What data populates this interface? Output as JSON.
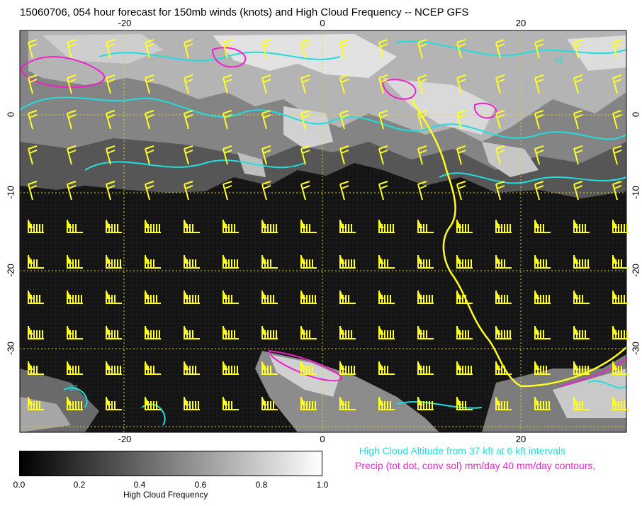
{
  "title": "15060706, 054 hour forecast for 150mb winds (knots) and High Cloud Frequency -- NCEP GFS",
  "axes": {
    "lon_top": [
      "-20",
      "0",
      "20"
    ],
    "lon_bottom": [
      "-20",
      "0",
      "20"
    ],
    "lat_left": [
      "0",
      "-10",
      "-20",
      "-30"
    ],
    "lat_right": [
      "0",
      "-10",
      "-20",
      "-30"
    ]
  },
  "colorbar": {
    "ticks": [
      "0.0",
      "0.2",
      "0.4",
      "0.6",
      "0.8",
      "1.0"
    ],
    "label": "High Cloud Frequency"
  },
  "legend": {
    "cyan": "High Cloud Altitude from 37 kft at 6 kft intervals",
    "magenta": "Precip (tot dot, conv sol) mm/day 40 mm/day contours,"
  },
  "colors": {
    "wind_barbs": "#ffff22",
    "cloud_contours": "#22dddd",
    "precip_contours": "#ee22cc",
    "grid": "#dddd00",
    "coastline": "#ffff22"
  },
  "contour_labels": [
    "49",
    "37"
  ],
  "map_region": {
    "lon_range": [
      -30,
      30
    ],
    "lat_range": [
      -40,
      10
    ]
  }
}
